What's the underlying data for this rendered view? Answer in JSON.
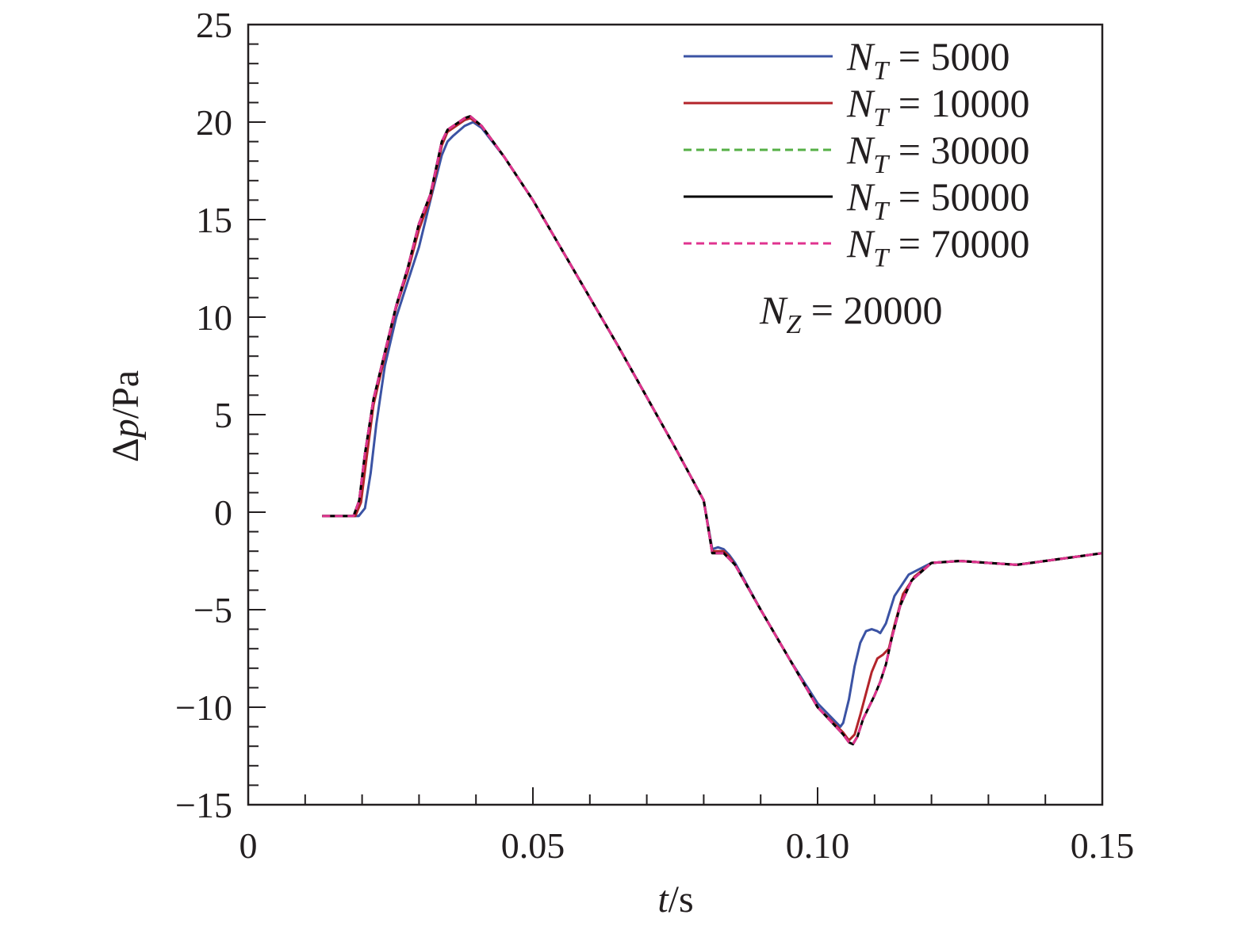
{
  "chart_data": {
    "type": "line",
    "xlabel": {
      "italic": "t",
      "rest": "/s"
    },
    "ylabel": {
      "pre": "Δ",
      "italic": "p",
      "rest": "/Pa"
    },
    "xlim": [
      0,
      0.15
    ],
    "ylim": [
      -15,
      25
    ],
    "xticks": [
      0,
      0.05,
      0.1,
      0.15
    ],
    "xtick_labels": [
      "0",
      "0.05",
      "0.10",
      "0.15"
    ],
    "xminor_step": 0.01,
    "yticks": [
      -15,
      -10,
      -5,
      0,
      5,
      10,
      15,
      20,
      25
    ],
    "ytick_labels": [
      "−15",
      "−10",
      "−5",
      "0",
      "5",
      "10",
      "15",
      "20",
      "25"
    ],
    "yminor_step": 1,
    "grid": false,
    "legend_position": "top-right",
    "annotation": {
      "sym": "N",
      "sub": "Z",
      "rest": " = 20000"
    },
    "series": [
      {
        "name": "N_T = 5000",
        "sym": "N",
        "sub": "T",
        "rest": " = 5000",
        "color": "#3b53a4",
        "dash": "none",
        "x": [
          0.013,
          0.0194,
          0.0205,
          0.0215,
          0.0225,
          0.024,
          0.026,
          0.028,
          0.03,
          0.032,
          0.034,
          0.035,
          0.036,
          0.038,
          0.0395,
          0.041,
          0.045,
          0.05,
          0.055,
          0.06,
          0.065,
          0.07,
          0.075,
          0.08,
          0.0815,
          0.0825,
          0.0835,
          0.0845,
          0.0855,
          0.09,
          0.095,
          0.1,
          0.104,
          0.1045,
          0.1055,
          0.1065,
          0.1075,
          0.1085,
          0.1095,
          0.1105,
          0.111,
          0.112,
          0.1135,
          0.116,
          0.12,
          0.125,
          0.13,
          0.135,
          0.14,
          0.145,
          0.15
        ],
        "y": [
          -0.2,
          -0.2,
          0.2,
          2.0,
          4.5,
          7.5,
          10.0,
          11.8,
          13.6,
          16.0,
          18.3,
          19.0,
          19.3,
          19.8,
          20.0,
          19.7,
          18.2,
          16.0,
          13.5,
          11.0,
          8.5,
          5.9,
          3.3,
          0.6,
          -1.9,
          -1.8,
          -1.9,
          -2.2,
          -2.6,
          -5.0,
          -7.5,
          -9.8,
          -11.0,
          -10.8,
          -9.6,
          -7.9,
          -6.7,
          -6.1,
          -6.0,
          -6.1,
          -6.2,
          -5.7,
          -4.3,
          -3.2,
          -2.6,
          -2.5,
          -2.6,
          -2.7,
          -2.5,
          -2.3,
          -2.1
        ]
      },
      {
        "name": "N_T = 10000",
        "sym": "N",
        "sub": "T",
        "rest": " = 10000",
        "color": "#b3242a",
        "dash": "none",
        "x": [
          0.013,
          0.0188,
          0.0198,
          0.0208,
          0.022,
          0.024,
          0.026,
          0.028,
          0.03,
          0.032,
          0.034,
          0.035,
          0.036,
          0.038,
          0.039,
          0.041,
          0.045,
          0.05,
          0.055,
          0.06,
          0.065,
          0.07,
          0.075,
          0.08,
          0.0815,
          0.0825,
          0.0835,
          0.0845,
          0.0855,
          0.09,
          0.095,
          0.1,
          0.1045,
          0.1055,
          0.1065,
          0.1075,
          0.1085,
          0.1095,
          0.1105,
          0.1115,
          0.1125,
          0.1135,
          0.115,
          0.117,
          0.12,
          0.125,
          0.13,
          0.135,
          0.14,
          0.145,
          0.15
        ],
        "y": [
          -0.2,
          -0.2,
          0.5,
          2.8,
          5.5,
          8.0,
          10.5,
          12.3,
          14.5,
          16.1,
          18.8,
          19.5,
          19.7,
          20.1,
          20.2,
          19.8,
          18.2,
          16.0,
          13.5,
          11.0,
          8.5,
          5.9,
          3.3,
          0.6,
          -2.0,
          -2.0,
          -2.0,
          -2.3,
          -2.7,
          -5.0,
          -7.5,
          -10.0,
          -11.3,
          -11.7,
          -11.4,
          -10.4,
          -9.3,
          -8.2,
          -7.5,
          -7.3,
          -7.0,
          -5.8,
          -4.2,
          -3.3,
          -2.6,
          -2.5,
          -2.6,
          -2.7,
          -2.5,
          -2.3,
          -2.1
        ]
      },
      {
        "name": "N_T = 30000",
        "sym": "N",
        "sub": "T",
        "rest": " = 30000",
        "color": "#56b046",
        "dash": "10 6",
        "x": [
          0.013,
          0.0185,
          0.0195,
          0.0205,
          0.022,
          0.024,
          0.026,
          0.028,
          0.03,
          0.032,
          0.034,
          0.035,
          0.036,
          0.038,
          0.039,
          0.041,
          0.045,
          0.05,
          0.055,
          0.06,
          0.065,
          0.07,
          0.075,
          0.08,
          0.0815,
          0.0825,
          0.0835,
          0.0845,
          0.0855,
          0.09,
          0.095,
          0.1,
          0.1045,
          0.1055,
          0.1062,
          0.107,
          0.108,
          0.109,
          0.11,
          0.111,
          0.112,
          0.113,
          0.1145,
          0.1165,
          0.12,
          0.125,
          0.13,
          0.135,
          0.14,
          0.145,
          0.15
        ],
        "y": [
          -0.2,
          -0.2,
          0.6,
          3.0,
          5.8,
          8.2,
          10.6,
          12.5,
          14.8,
          16.3,
          19.0,
          19.6,
          19.8,
          20.2,
          20.3,
          19.8,
          18.2,
          16.0,
          13.5,
          11.0,
          8.5,
          5.9,
          3.3,
          0.6,
          -2.1,
          -2.1,
          -2.1,
          -2.4,
          -2.7,
          -5.0,
          -7.5,
          -10.0,
          -11.4,
          -11.8,
          -11.9,
          -11.5,
          -10.6,
          -10.0,
          -9.4,
          -8.7,
          -7.8,
          -6.5,
          -4.8,
          -3.5,
          -2.6,
          -2.5,
          -2.6,
          -2.7,
          -2.5,
          -2.3,
          -2.1
        ]
      },
      {
        "name": "N_T = 50000",
        "sym": "N",
        "sub": "T",
        "rest": " = 50000",
        "color": "#000000",
        "dash": "none",
        "x": [
          0.013,
          0.0185,
          0.0195,
          0.0205,
          0.022,
          0.024,
          0.026,
          0.028,
          0.03,
          0.032,
          0.034,
          0.035,
          0.036,
          0.038,
          0.039,
          0.041,
          0.045,
          0.05,
          0.055,
          0.06,
          0.065,
          0.07,
          0.075,
          0.08,
          0.0815,
          0.0825,
          0.0835,
          0.0845,
          0.0855,
          0.09,
          0.095,
          0.1,
          0.1045,
          0.1055,
          0.1062,
          0.107,
          0.108,
          0.109,
          0.11,
          0.111,
          0.112,
          0.113,
          0.1145,
          0.1165,
          0.12,
          0.125,
          0.13,
          0.135,
          0.14,
          0.145,
          0.15
        ],
        "y": [
          -0.2,
          -0.2,
          0.6,
          3.0,
          5.8,
          8.2,
          10.6,
          12.5,
          14.8,
          16.3,
          19.0,
          19.6,
          19.8,
          20.2,
          20.3,
          19.8,
          18.2,
          16.0,
          13.5,
          11.0,
          8.5,
          5.9,
          3.3,
          0.6,
          -2.1,
          -2.1,
          -2.1,
          -2.4,
          -2.7,
          -5.0,
          -7.5,
          -10.0,
          -11.4,
          -11.8,
          -11.9,
          -11.5,
          -10.6,
          -10.0,
          -9.4,
          -8.7,
          -7.8,
          -6.5,
          -4.8,
          -3.5,
          -2.6,
          -2.5,
          -2.6,
          -2.7,
          -2.5,
          -2.3,
          -2.1
        ]
      },
      {
        "name": "N_T = 70000",
        "sym": "N",
        "sub": "T",
        "rest": " = 70000",
        "color": "#e0338f",
        "dash": "10 6",
        "x": [
          0.013,
          0.0185,
          0.0195,
          0.0205,
          0.022,
          0.024,
          0.026,
          0.028,
          0.03,
          0.032,
          0.034,
          0.035,
          0.036,
          0.038,
          0.039,
          0.041,
          0.045,
          0.05,
          0.055,
          0.06,
          0.065,
          0.07,
          0.075,
          0.08,
          0.0815,
          0.0825,
          0.0835,
          0.0845,
          0.0855,
          0.09,
          0.095,
          0.1,
          0.1045,
          0.1055,
          0.1062,
          0.107,
          0.108,
          0.109,
          0.11,
          0.111,
          0.112,
          0.113,
          0.1145,
          0.1165,
          0.12,
          0.125,
          0.13,
          0.135,
          0.14,
          0.145,
          0.15
        ],
        "y": [
          -0.2,
          -0.2,
          0.6,
          3.0,
          5.8,
          8.2,
          10.6,
          12.5,
          14.8,
          16.3,
          19.0,
          19.6,
          19.8,
          20.2,
          20.3,
          19.8,
          18.2,
          16.0,
          13.5,
          11.0,
          8.5,
          5.9,
          3.3,
          0.6,
          -2.1,
          -2.1,
          -2.1,
          -2.4,
          -2.7,
          -5.0,
          -7.5,
          -10.0,
          -11.4,
          -11.8,
          -11.9,
          -11.5,
          -10.6,
          -10.0,
          -9.4,
          -8.7,
          -7.8,
          -6.5,
          -4.8,
          -3.5,
          -2.6,
          -2.5,
          -2.6,
          -2.7,
          -2.5,
          -2.3,
          -2.1
        ]
      }
    ]
  }
}
